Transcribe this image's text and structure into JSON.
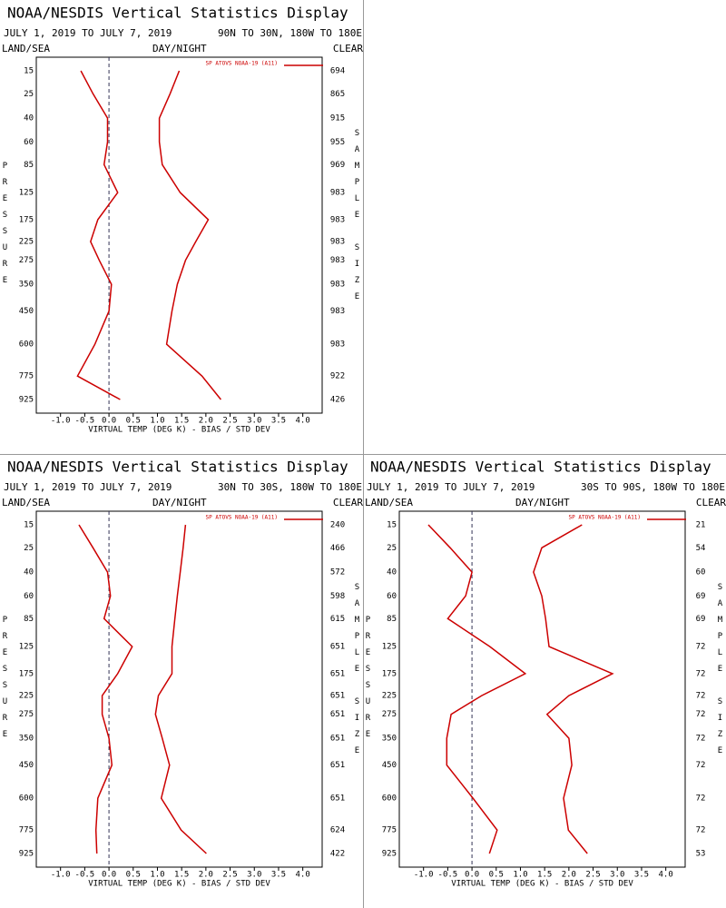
{
  "chart_data": [
    {
      "type": "line",
      "title": "NOAA/NESDIS Vertical Statistics Display",
      "subtitle": "JULY 1, 2019 TO JULY 7, 2019",
      "region": "90N TO 30N, 180W TO 180E",
      "surface": "LAND/SEA",
      "time": "DAY/NIGHT",
      "sky": "CLEAR",
      "y_label": "PRESSURE",
      "y2_label": "SAMPLE SIZE",
      "x_label": "VIRTUAL TEMP (DEG K) - BIAS / STD DEV",
      "legend": "SP ATOVS NOAA-19 (A11)",
      "legend_color": "#cc0000",
      "categories": [
        15,
        25,
        40,
        60,
        85,
        125,
        175,
        225,
        275,
        350,
        450,
        600,
        775,
        925
      ],
      "sample_size": [
        694,
        865,
        915,
        955,
        969,
        983,
        983,
        983,
        983,
        983,
        983,
        983,
        922,
        426
      ],
      "series": [
        {
          "color": "#cc0000",
          "values": [
            -0.58,
            -0.33,
            -0.03,
            -0.03,
            -0.1,
            0.18,
            -0.23,
            -0.38,
            -0.2,
            0.05,
            0,
            -0.29,
            -0.65,
            0.23
          ]
        },
        {
          "color": "#cc0000",
          "values": [
            1.45,
            1.26,
            1.04,
            1.04,
            1.1,
            1.47,
            2.05,
            1.79,
            1.58,
            1.41,
            1.3,
            1.19,
            1.92,
            2.31
          ]
        }
      ],
      "xlim": [
        -1.5,
        4.4
      ],
      "xticks": [
        {
          "value": -1,
          "label": "-1.0"
        },
        {
          "value": -0.5,
          "label": "-0.5"
        },
        {
          "value": 0,
          "label": "0.0"
        },
        0.5,
        {
          "value": 1,
          "label": "1.0"
        },
        1.5,
        {
          "value": 2,
          "label": "2.0"
        },
        2.5,
        {
          "value": 3,
          "label": "3.0"
        },
        3.5,
        {
          "value": 4,
          "label": "4.0"
        }
      ]
    },
    {
      "type": "line",
      "title": "NOAA/NESDIS Vertical Statistics Display",
      "subtitle": "JULY 1, 2019 TO JULY 7, 2019",
      "region": "30N TO 30S, 180W TO 180E",
      "surface": "LAND/SEA",
      "time": "DAY/NIGHT",
      "sky": "CLEAR",
      "y_label": "PRESSURE",
      "y2_label": "SAMPLE SIZE",
      "x_label": "VIRTUAL TEMP (DEG K) - BIAS / STD DEV",
      "legend": "SP ATOVS NOAA-19 (A11)",
      "legend_color": "#cc0000",
      "categories": [
        15,
        25,
        40,
        60,
        85,
        125,
        175,
        225,
        275,
        350,
        450,
        600,
        775,
        925
      ],
      "sample_size": [
        240,
        466,
        572,
        598,
        615,
        651,
        651,
        651,
        651,
        651,
        651,
        651,
        624,
        422
      ],
      "series": [
        {
          "color": "#cc0000",
          "values": [
            -0.62,
            -0.33,
            -0.03,
            0.03,
            -0.1,
            0.48,
            0.18,
            -0.14,
            -0.14,
            0,
            0.06,
            -0.23,
            -0.27,
            -0.25
          ]
        },
        {
          "color": "#cc0000",
          "values": [
            1.58,
            1.53,
            1.47,
            1.41,
            1.36,
            1.3,
            1.3,
            1.02,
            0.96,
            1.1,
            1.25,
            1.08,
            1.49,
            2.01
          ]
        }
      ],
      "xlim": [
        -1.5,
        4.4
      ],
      "xticks": [
        {
          "value": -1,
          "label": "-1.0"
        },
        {
          "value": -0.5,
          "label": "-0.5"
        },
        {
          "value": 0,
          "label": "0.0"
        },
        0.5,
        {
          "value": 1,
          "label": "1.0"
        },
        1.5,
        {
          "value": 2,
          "label": "2.0"
        },
        2.5,
        {
          "value": 3,
          "label": "3.0"
        },
        3.5,
        {
          "value": 4,
          "label": "4.0"
        }
      ]
    },
    {
      "type": "line",
      "title": "NOAA/NESDIS Vertical Statistics Display",
      "subtitle": "JULY 1, 2019 TO JULY 7, 2019",
      "region": "30S TO 90S, 180W TO 180E",
      "surface": "LAND/SEA",
      "time": "DAY/NIGHT",
      "sky": "CLEAR",
      "y_label": "PRESSURE",
      "y2_label": "SAMPLE SIZE",
      "x_label": "VIRTUAL TEMP (DEG K) - BIAS / STD DEV",
      "legend": "SP ATOVS NOAA-19 (A11)",
      "legend_color": "#cc0000",
      "categories": [
        15,
        25,
        40,
        60,
        85,
        125,
        175,
        225,
        275,
        350,
        450,
        600,
        775,
        925
      ],
      "sample_size": [
        21,
        54,
        60,
        69,
        69,
        72,
        72,
        72,
        72,
        72,
        72,
        72,
        72,
        53
      ],
      "series": [
        {
          "color": "#cc0000",
          "values": [
            -0.9,
            -0.45,
            0,
            -0.13,
            -0.5,
            0.37,
            1.1,
            0.2,
            -0.43,
            -0.52,
            -0.52,
            0.02,
            0.52,
            0.36
          ]
        },
        {
          "color": "#cc0000",
          "values": [
            2.27,
            1.44,
            1.27,
            1.44,
            1.52,
            1.59,
            2.9,
            2.0,
            1.55,
            2.0,
            2.06,
            1.89,
            1.99,
            2.38
          ]
        }
      ],
      "xlim": [
        -1.5,
        4.4
      ],
      "xticks": [
        {
          "value": -1,
          "label": "-1.0"
        },
        {
          "value": -0.5,
          "label": "-0.5"
        },
        {
          "value": 0,
          "label": "0.0"
        },
        0.5,
        {
          "value": 1,
          "label": "1.0"
        },
        1.5,
        {
          "value": 2,
          "label": "2.0"
        },
        2.5,
        {
          "value": 3,
          "label": "3.0"
        },
        3.5,
        {
          "value": 4,
          "label": "4.0"
        }
      ]
    }
  ]
}
